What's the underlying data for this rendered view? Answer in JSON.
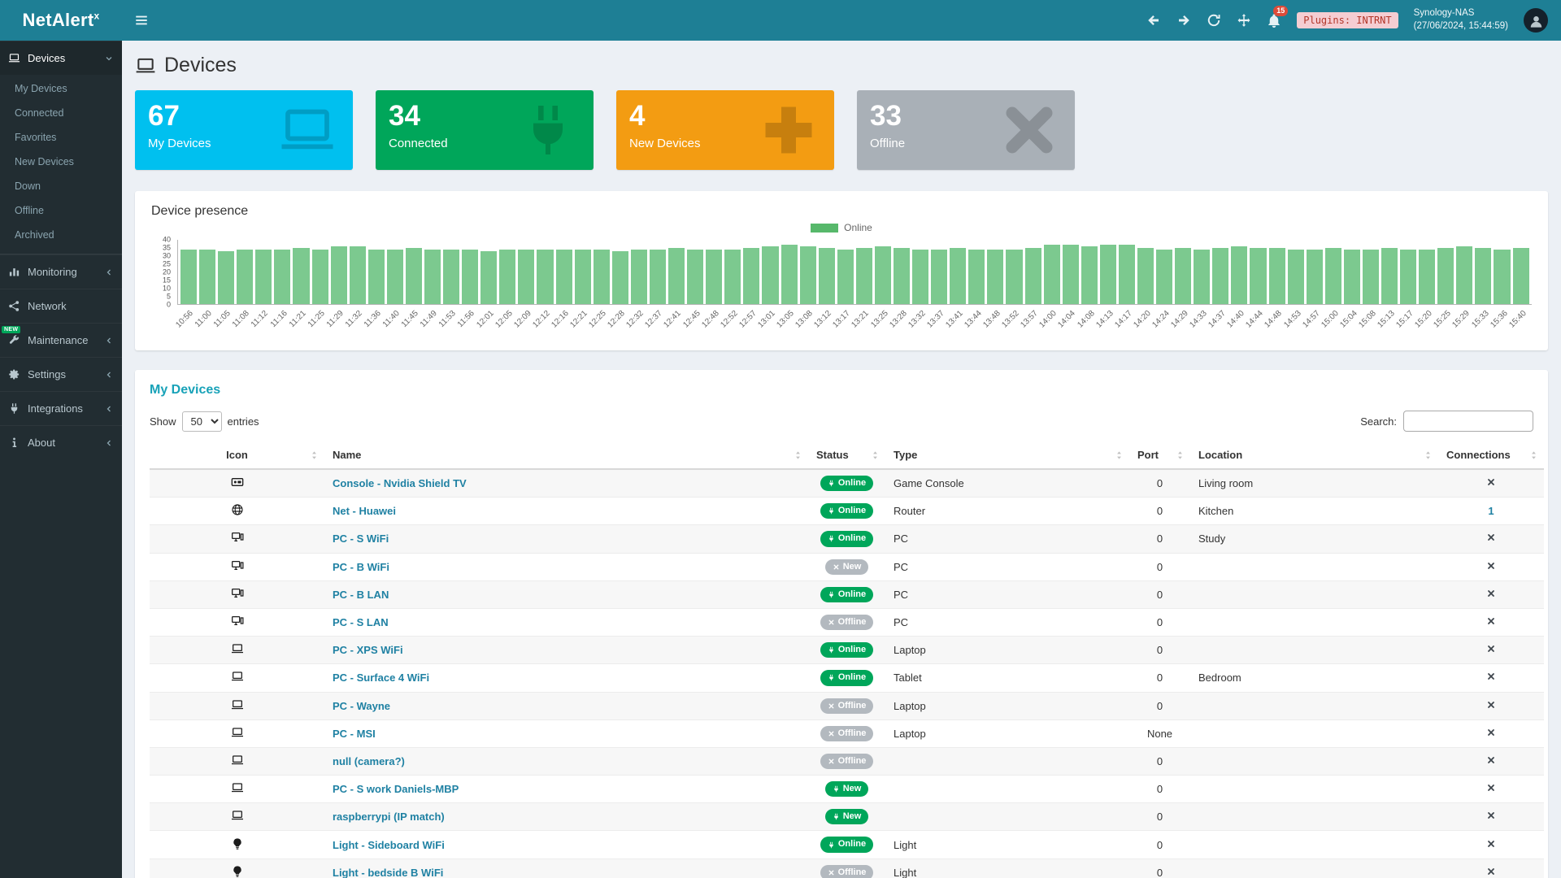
{
  "colors": {
    "topbar": "#1e7f95",
    "sidebar": "#222d32",
    "notification_red": "#dd4b39",
    "online_green": "#00a65a",
    "badge_gray": "#b3b9bf",
    "bar_green": "#7cc98f",
    "legend_green": "#57b86b",
    "panel_title_teal": "#18a2b8",
    "link_teal": "#1f81a3"
  },
  "topbar": {
    "logo": "NetAlert",
    "logo_sup": "x",
    "notification_count": "15",
    "plugins_badge": "Plugins: INTRNT",
    "nas_name": "Synology-NAS",
    "nas_time": "(27/06/2024, 15:44:59)"
  },
  "sidebar": {
    "items": [
      {
        "id": "devices",
        "label": "Devices",
        "icon": "laptop",
        "chevron": "down",
        "active": true,
        "children": [
          "My Devices",
          "Connected",
          "Favorites",
          "New Devices",
          "Down",
          "Offline",
          "Archived"
        ]
      },
      {
        "id": "monitoring",
        "label": "Monitoring",
        "icon": "chart",
        "chevron": "left"
      },
      {
        "id": "network",
        "label": "Network",
        "icon": "network"
      },
      {
        "id": "maintenance",
        "label": "Maintenance",
        "icon": "wrench",
        "chevron": "left",
        "badge": "NEW"
      },
      {
        "id": "settings",
        "label": "Settings",
        "icon": "gear",
        "chevron": "left"
      },
      {
        "id": "integrations",
        "label": "Integrations",
        "icon": "plug",
        "chevron": "left"
      },
      {
        "id": "about",
        "label": "About",
        "icon": "info",
        "chevron": "left"
      }
    ]
  },
  "page": {
    "title": "Devices"
  },
  "infoboxes": [
    {
      "value": "67",
      "label": "My Devices",
      "icon": "laptop",
      "color": "#00c0ef"
    },
    {
      "value": "34",
      "label": "Connected",
      "icon": "plug",
      "color": "#00a65a"
    },
    {
      "value": "4",
      "label": "New Devices",
      "icon": "plus",
      "color": "#f39c12"
    },
    {
      "value": "33",
      "label": "Offline",
      "icon": "xmark",
      "color": "#a9b0b7"
    }
  ],
  "presence": {
    "title": "Device presence",
    "legend": "Online"
  },
  "chart_data": {
    "type": "bar",
    "title": "Device presence",
    "legend": [
      "Online"
    ],
    "legend_position": "top-center",
    "bar_color": "#7cc98f",
    "grid": false,
    "ylim": [
      0,
      40
    ],
    "yticks": [
      0,
      5,
      10,
      15,
      20,
      25,
      30,
      35,
      40
    ],
    "categories": [
      "10:56",
      "11:00",
      "11:05",
      "11:08",
      "11:12",
      "11:16",
      "11:21",
      "11:25",
      "11:29",
      "11:32",
      "11:36",
      "11:40",
      "11:45",
      "11:49",
      "11:53",
      "11:56",
      "12:01",
      "12:05",
      "12:09",
      "12:12",
      "12:16",
      "12:21",
      "12:25",
      "12:28",
      "12:32",
      "12:37",
      "12:41",
      "12:45",
      "12:48",
      "12:52",
      "12:57",
      "13:01",
      "13:05",
      "13:08",
      "13:12",
      "13:17",
      "13:21",
      "13:25",
      "13:28",
      "13:32",
      "13:37",
      "13:41",
      "13:44",
      "13:48",
      "13:52",
      "13:57",
      "14:00",
      "14:04",
      "14:08",
      "14:13",
      "14:17",
      "14:20",
      "14:24",
      "14:29",
      "14:33",
      "14:37",
      "14:40",
      "14:44",
      "14:48",
      "14:53",
      "14:57",
      "15:00",
      "15:04",
      "15:08",
      "15:13",
      "15:17",
      "15:20",
      "15:25",
      "15:29",
      "15:33",
      "15:36",
      "15:40"
    ],
    "values": [
      34,
      34,
      33,
      34,
      34,
      34,
      35,
      34,
      36,
      36,
      34,
      34,
      35,
      34,
      34,
      34,
      33,
      34,
      34,
      34,
      34,
      34,
      34,
      33,
      34,
      34,
      35,
      34,
      34,
      34,
      35,
      36,
      37,
      36,
      35,
      34,
      35,
      36,
      35,
      34,
      34,
      35,
      34,
      34,
      34,
      35,
      37,
      37,
      36,
      37,
      37,
      35,
      34,
      35,
      34,
      35,
      36,
      35,
      35,
      34,
      34,
      35,
      34,
      34,
      35,
      34,
      34,
      35,
      36,
      35,
      34,
      35
    ]
  },
  "devices_table": {
    "title": "My Devices",
    "show_label": "Show",
    "page_size": "50",
    "entries_label": "entries",
    "search_label": "Search:",
    "search_value": "",
    "columns": [
      "Icon",
      "Name",
      "Status",
      "Type",
      "Port",
      "Location",
      "Connections"
    ],
    "rows": [
      {
        "icon": "tv",
        "name": "Console - Nvidia Shield TV",
        "status": {
          "label": "Online",
          "variant": "green",
          "icon": "plug"
        },
        "type": "Game Console",
        "port": "0",
        "location": "Living room",
        "connections": "x"
      },
      {
        "icon": "globe",
        "name": "Net - Huawei",
        "status": {
          "label": "Online",
          "variant": "green",
          "icon": "plug"
        },
        "type": "Router",
        "port": "0",
        "location": "Kitchen",
        "connections": "1"
      },
      {
        "icon": "desktop",
        "name": "PC - S WiFi",
        "status": {
          "label": "Online",
          "variant": "green",
          "icon": "plug"
        },
        "type": "PC",
        "port": "0",
        "location": "Study",
        "connections": "x"
      },
      {
        "icon": "desktop",
        "name": "PC - B WiFi",
        "status": {
          "label": "New",
          "variant": "gray",
          "icon": "x"
        },
        "type": "PC",
        "port": "0",
        "location": "",
        "connections": "x"
      },
      {
        "icon": "desktop",
        "name": "PC - B LAN",
        "status": {
          "label": "Online",
          "variant": "green",
          "icon": "plug"
        },
        "type": "PC",
        "port": "0",
        "location": "",
        "connections": "x"
      },
      {
        "icon": "desktop",
        "name": "PC - S LAN",
        "status": {
          "label": "Offline",
          "variant": "gray",
          "icon": "x"
        },
        "type": "PC",
        "port": "0",
        "location": "",
        "connections": "x"
      },
      {
        "icon": "laptop",
        "name": "PC - XPS WiFi",
        "status": {
          "label": "Online",
          "variant": "green",
          "icon": "plug"
        },
        "type": "Laptop",
        "port": "0",
        "location": "",
        "connections": "x"
      },
      {
        "icon": "laptop",
        "name": "PC - Surface 4 WiFi",
        "status": {
          "label": "Online",
          "variant": "green",
          "icon": "plug"
        },
        "type": "Tablet",
        "port": "0",
        "location": "Bedroom",
        "connections": "x"
      },
      {
        "icon": "laptop",
        "name": "PC - Wayne",
        "status": {
          "label": "Offline",
          "variant": "gray",
          "icon": "x"
        },
        "type": "Laptop",
        "port": "0",
        "location": "",
        "connections": "x"
      },
      {
        "icon": "laptop",
        "name": "PC - MSI",
        "status": {
          "label": "Offline",
          "variant": "gray",
          "icon": "x"
        },
        "type": "Laptop",
        "port": "None",
        "location": "",
        "connections": "x"
      },
      {
        "icon": "laptop",
        "name": "null (camera?)",
        "status": {
          "label": "Offline",
          "variant": "gray",
          "icon": "x"
        },
        "type": "",
        "port": "0",
        "location": "",
        "connections": "x"
      },
      {
        "icon": "laptop",
        "name": "PC - S work Daniels-MBP",
        "status": {
          "label": "New",
          "variant": "green",
          "icon": "plug"
        },
        "type": "",
        "port": "0",
        "location": "",
        "connections": "x"
      },
      {
        "icon": "laptop",
        "name": "raspberrypi (IP match)",
        "status": {
          "label": "New",
          "variant": "green",
          "icon": "plug"
        },
        "type": "",
        "port": "0",
        "location": "",
        "connections": "x"
      },
      {
        "icon": "lightbulb",
        "name": "Light - Sideboard WiFi",
        "status": {
          "label": "Online",
          "variant": "green",
          "icon": "plug"
        },
        "type": "Light",
        "port": "0",
        "location": "",
        "connections": "x"
      },
      {
        "icon": "lightbulb",
        "name": "Light - bedside B WiFi",
        "status": {
          "label": "Offline",
          "variant": "gray",
          "icon": "x"
        },
        "type": "Light",
        "port": "0",
        "location": "",
        "connections": "x"
      }
    ]
  }
}
